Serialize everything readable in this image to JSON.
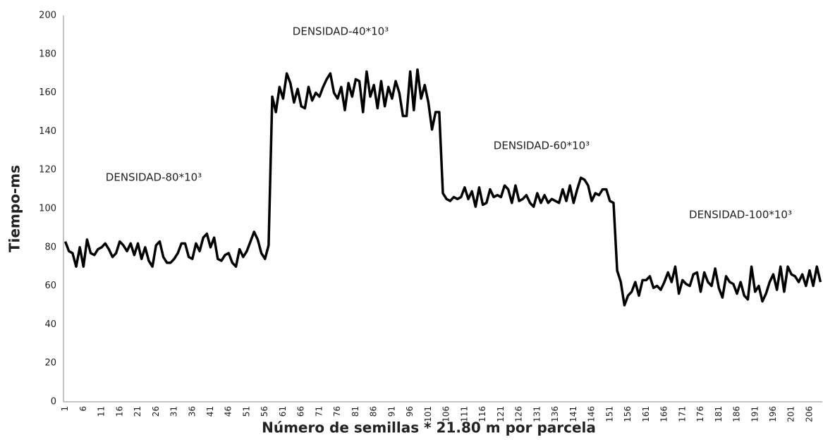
{
  "chart_data": {
    "type": "line",
    "y_label": "Tiempo-ms",
    "x_label": "Número de semillas * 21.80 m por parcela",
    "annotations": [
      "DENSIDAD-80*10³",
      "DENSIDAD-40*10³",
      "DENSIDAD-60*10³",
      "DENSIDAD-100*10³"
    ],
    "categories": [
      1,
      null,
      null,
      null,
      null,
      6,
      null,
      null,
      null,
      null,
      11,
      null,
      null,
      null,
      null,
      16,
      null,
      null,
      null,
      null,
      21,
      null,
      null,
      null,
      null,
      26,
      null,
      null,
      null,
      null,
      31,
      null,
      null,
      null,
      null,
      36,
      null,
      null,
      null,
      null,
      41,
      null,
      null,
      null,
      null,
      46,
      null,
      null,
      null,
      null,
      51,
      null,
      null,
      null,
      null,
      56,
      null,
      null,
      null,
      null,
      61,
      null,
      null,
      null,
      null,
      66,
      null,
      null,
      null,
      null,
      71,
      null,
      null,
      null,
      null,
      76,
      null,
      null,
      null,
      null,
      81,
      null,
      null,
      null,
      null,
      86,
      null,
      null,
      null,
      null,
      91,
      null,
      null,
      null,
      null,
      96,
      null,
      null,
      null,
      null,
      101,
      null,
      null,
      null,
      null,
      106,
      null,
      null,
      null,
      null,
      111,
      null,
      null,
      null,
      null,
      116,
      null,
      null,
      null,
      null,
      121,
      null,
      null,
      null,
      null,
      126,
      null,
      null,
      null,
      null,
      131,
      null,
      null,
      null,
      null,
      136,
      null,
      null,
      null,
      null,
      141,
      null,
      null,
      null,
      null,
      146,
      null,
      null,
      null,
      null,
      151,
      null,
      null,
      null,
      null,
      156,
      null,
      null,
      null,
      null,
      161,
      null,
      null,
      null,
      null,
      166,
      null,
      null,
      null,
      null,
      171,
      null,
      null,
      null,
      null,
      176,
      null,
      null,
      null,
      null,
      181,
      null,
      null,
      null,
      null,
      186,
      null,
      null,
      null,
      null,
      191,
      null,
      null,
      null,
      null,
      196,
      null,
      null,
      null,
      null,
      201,
      null,
      null,
      null,
      null,
      206,
      null,
      null,
      null
    ],
    "values": [
      83,
      78,
      77,
      70,
      80,
      70,
      84,
      77,
      76,
      79,
      80,
      82,
      79,
      75,
      77,
      83,
      81,
      78,
      82,
      76,
      82,
      74,
      80,
      73,
      70,
      81,
      83,
      75,
      72,
      72,
      74,
      77,
      82,
      82,
      75,
      74,
      82,
      78,
      85,
      87,
      80,
      85,
      74,
      73,
      76,
      77,
      72,
      70,
      79,
      75,
      78,
      83,
      88,
      84,
      77,
      74,
      81,
      158,
      150,
      163,
      157,
      170,
      165,
      155,
      162,
      153,
      152,
      163,
      156,
      160,
      158,
      163,
      167,
      170,
      160,
      157,
      163,
      151,
      165,
      158,
      167,
      166,
      150,
      171,
      158,
      164,
      152,
      166,
      153,
      163,
      157,
      166,
      160,
      148,
      148,
      171,
      151,
      172,
      157,
      164,
      155,
      141,
      150,
      150,
      108,
      105,
      104,
      106,
      105,
      106,
      111,
      105,
      109,
      101,
      111,
      102,
      103,
      110,
      106,
      107,
      106,
      112,
      110,
      103,
      112,
      104,
      105,
      107,
      103,
      101,
      108,
      103,
      107,
      103,
      105,
      104,
      103,
      110,
      104,
      112,
      103,
      110,
      116,
      115,
      112,
      104,
      108,
      107,
      110,
      110,
      104,
      103,
      68,
      62,
      50,
      55,
      57,
      62,
      55,
      63,
      63,
      65,
      59,
      60,
      58,
      62,
      67,
      62,
      70,
      56,
      63,
      61,
      60,
      66,
      67,
      57,
      67,
      62,
      60,
      69,
      59,
      54,
      65,
      62,
      61,
      56,
      62,
      55,
      53,
      70,
      57,
      60,
      52,
      56,
      62,
      66,
      58,
      70,
      57,
      70,
      66,
      65,
      62,
      66,
      60,
      68,
      60,
      70,
      62
    ],
    "color": "#000000",
    "ylim": [
      0,
      200
    ],
    "yticks": [
      0,
      20,
      40,
      60,
      80,
      100,
      120,
      140,
      160,
      180,
      200
    ],
    "grid": false
  }
}
